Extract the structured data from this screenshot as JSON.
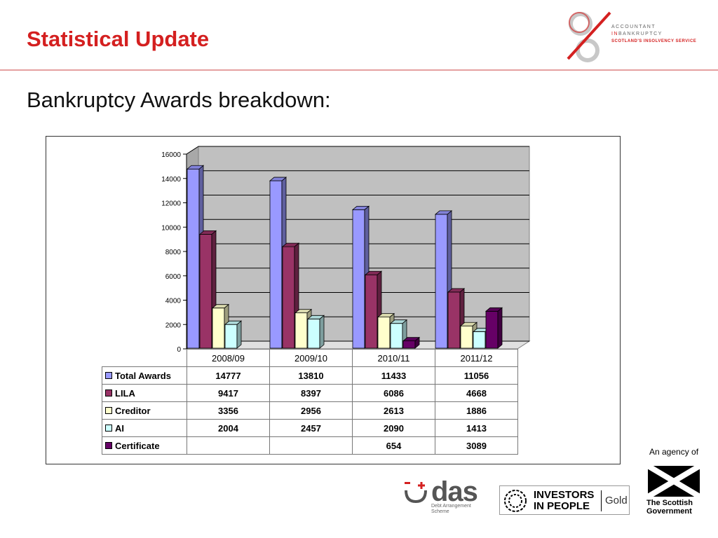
{
  "header": {
    "title": "Statistical Update",
    "subtitle": "Bankruptcy Awards breakdown:"
  },
  "colors": {
    "title": "#d42020",
    "rule": "#e5a0a0"
  },
  "chart_data": {
    "type": "bar",
    "categories": [
      "2008/09",
      "2009/10",
      "2010/11",
      "2011/12"
    ],
    "series": [
      {
        "name": "Total Awards",
        "values": [
          14777,
          13810,
          11433,
          11056
        ],
        "color": "#9999ff"
      },
      {
        "name": "LILA",
        "values": [
          9417,
          8397,
          6086,
          4668
        ],
        "color": "#993366"
      },
      {
        "name": "Creditor",
        "values": [
          3356,
          2956,
          2613,
          1886
        ],
        "color": "#ffffcc"
      },
      {
        "name": "AI",
        "values": [
          2004,
          2457,
          2090,
          1413
        ],
        "color": "#ccffff"
      },
      {
        "name": "Certificate",
        "values": [
          null,
          null,
          654,
          3089
        ],
        "color": "#660066"
      }
    ],
    "ylim": [
      0,
      16000
    ],
    "yticks": [
      "0",
      "2000",
      "4000",
      "6000",
      "8000",
      "10000",
      "12000",
      "14000",
      "16000"
    ],
    "grid": true,
    "legend": "data-table",
    "title": "",
    "xlabel": "",
    "ylabel": ""
  },
  "table": {
    "rows": [
      {
        "label": "Total Awards",
        "cells": [
          "14777",
          "13810",
          "11433",
          "11056"
        ]
      },
      {
        "label": "LILA",
        "cells": [
          "9417",
          "8397",
          "6086",
          "4668"
        ]
      },
      {
        "label": "Creditor",
        "cells": [
          "3356",
          "2956",
          "2613",
          "1886"
        ]
      },
      {
        "label": "AI",
        "cells": [
          "2004",
          "2457",
          "2090",
          "1413"
        ]
      },
      {
        "label": "Certificate",
        "cells": [
          "",
          "",
          "654",
          "3089"
        ]
      }
    ]
  },
  "logos": {
    "aib": {
      "line1": "ACCOUNTANT",
      "line2_in": "IN",
      "line2_rest": "BANKRUPTCY",
      "line3": "SCOTLAND'S INSOLVENCY SERVICE"
    },
    "agency": "An agency of",
    "gov": {
      "line1": "The Scottish",
      "line2": "Government"
    },
    "das": {
      "name": "das",
      "sub1": "Debt Arrangement",
      "sub2": "Scheme"
    },
    "iip": {
      "line1": "INVESTORS",
      "line2": "IN PEOPLE",
      "level": "Gold"
    }
  }
}
